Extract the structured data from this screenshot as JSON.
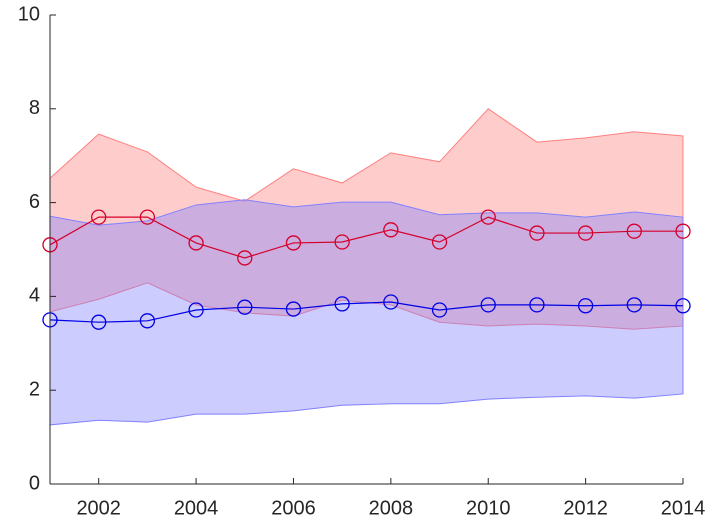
{
  "chart_data": {
    "type": "line-band",
    "x": [
      2001,
      2002,
      2003,
      2004,
      2005,
      2006,
      2007,
      2008,
      2009,
      2010,
      2011,
      2012,
      2013,
      2014
    ],
    "series": [
      {
        "color": "#d4002a",
        "band_color": "#ff8080",
        "values": [
          5.1,
          5.69,
          5.69,
          5.14,
          4.82,
          5.14,
          5.16,
          5.42,
          5.16,
          5.69,
          5.35,
          5.35,
          5.39,
          5.39
        ],
        "upper": [
          6.52,
          7.46,
          7.08,
          6.33,
          6.03,
          6.72,
          6.42,
          7.06,
          6.87,
          8.0,
          7.29,
          7.38,
          7.51,
          7.42
        ],
        "lower": [
          3.67,
          3.94,
          4.29,
          3.82,
          3.65,
          3.58,
          3.92,
          3.82,
          3.45,
          3.37,
          3.41,
          3.37,
          3.3,
          3.37
        ]
      },
      {
        "color": "#0000e6",
        "band_color": "#8080ff",
        "values": [
          3.5,
          3.45,
          3.48,
          3.71,
          3.77,
          3.73,
          3.84,
          3.88,
          3.71,
          3.82,
          3.82,
          3.8,
          3.82,
          3.8
        ],
        "upper": [
          5.71,
          5.52,
          5.61,
          5.95,
          6.06,
          5.91,
          6.01,
          6.01,
          5.74,
          5.78,
          5.78,
          5.69,
          5.8,
          5.69
        ],
        "lower": [
          1.26,
          1.36,
          1.32,
          1.49,
          1.49,
          1.56,
          1.68,
          1.71,
          1.71,
          1.81,
          1.85,
          1.88,
          1.83,
          1.92
        ]
      }
    ],
    "xlim": [
      2001,
      2014
    ],
    "xticks": [
      2002,
      2004,
      2006,
      2008,
      2010,
      2012,
      2014
    ],
    "ylim": [
      0,
      10
    ],
    "yticks": [
      0,
      2,
      4,
      6,
      8,
      10
    ]
  }
}
